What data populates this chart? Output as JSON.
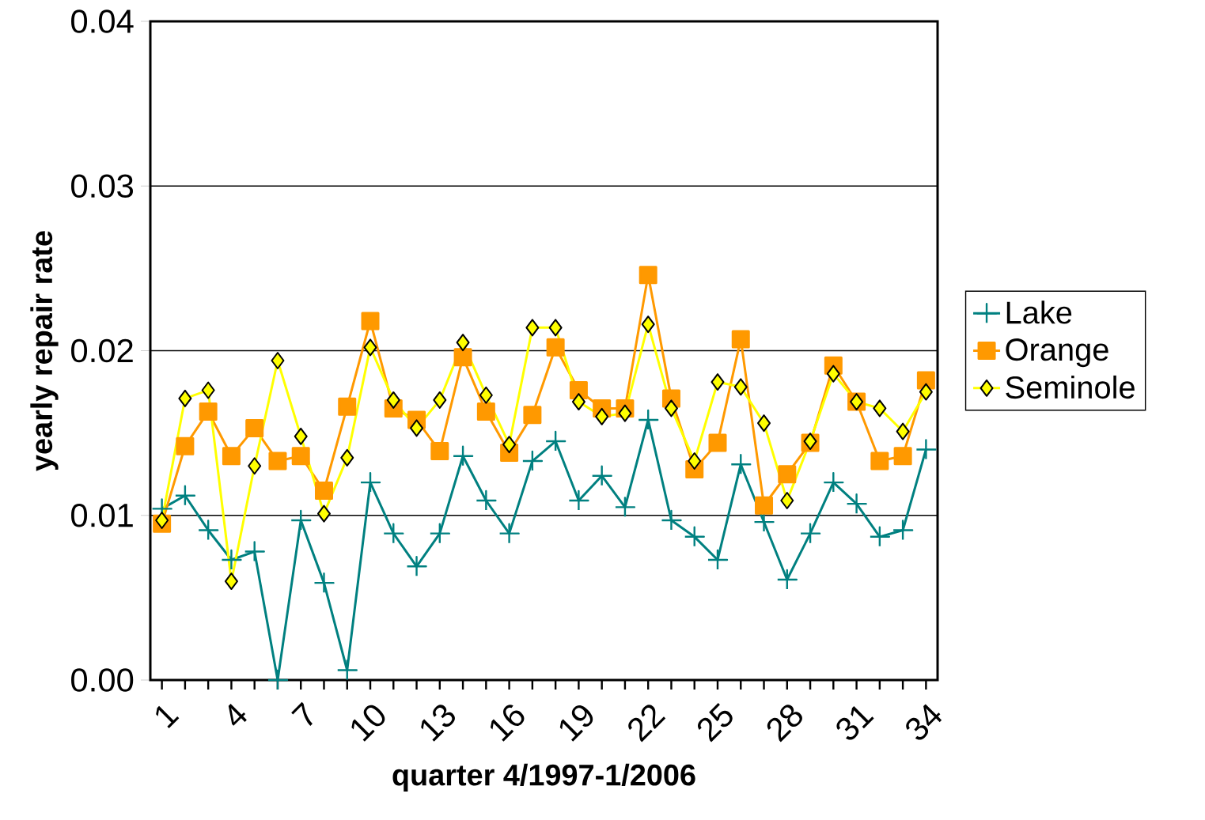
{
  "chart_data": {
    "type": "line",
    "xlabel": "quarter 4/1997-1/2006",
    "ylabel": "yearly repair rate",
    "categories": [
      "1",
      null,
      null,
      "4",
      null,
      null,
      "7",
      null,
      null,
      "10",
      null,
      null,
      "13",
      null,
      null,
      "16",
      null,
      null,
      "19",
      null,
      null,
      "22",
      null,
      null,
      "25",
      null,
      null,
      "28",
      null,
      null,
      "31",
      null,
      null,
      "34"
    ],
    "ylim": [
      0,
      0.04
    ],
    "yticks": [
      {
        "value": 0,
        "label": "0.00"
      },
      {
        "value": 0.01,
        "label": "0.01"
      },
      {
        "value": 0.02,
        "label": "0.02"
      },
      {
        "value": 0.03,
        "label": "0.03"
      },
      {
        "value": 0.04,
        "label": "0.04"
      }
    ],
    "grid": "y",
    "legend": "right",
    "series": [
      {
        "name": "Lake",
        "color": "#008080",
        "marker": "cross",
        "values": [
          0.0104,
          0.0112,
          0.0091,
          0.0073,
          0.0078,
          0.0,
          0.0097,
          0.0059,
          0.0006,
          0.012,
          0.0089,
          0.0069,
          0.0089,
          0.0136,
          0.0109,
          0.0089,
          0.0133,
          0.0145,
          0.0109,
          0.0124,
          0.0105,
          0.0158,
          0.0097,
          0.0087,
          0.0073,
          0.0131,
          0.0096,
          0.0061,
          0.0089,
          0.012,
          0.0107,
          0.0087,
          0.0091,
          0.014
        ]
      },
      {
        "name": "Orange",
        "color": "#ff9900",
        "marker": "square",
        "values": [
          0.0095,
          0.0142,
          0.0163,
          0.0136,
          0.0153,
          0.0133,
          0.0136,
          0.0115,
          0.0166,
          0.0218,
          0.0165,
          0.0158,
          0.0139,
          0.0196,
          0.0163,
          0.0138,
          0.0161,
          0.0202,
          0.0176,
          0.0165,
          0.0165,
          0.0246,
          0.0171,
          0.0128,
          0.0144,
          0.0207,
          0.0106,
          0.0125,
          0.0144,
          0.0191,
          0.0169,
          0.0133,
          0.0136,
          0.0182
        ]
      },
      {
        "name": "Seminole",
        "color": "#ffff00",
        "marker": "diamond",
        "values": [
          0.0097,
          0.0171,
          0.0176,
          0.006,
          0.013,
          0.0194,
          0.0148,
          0.0101,
          0.0135,
          0.0202,
          0.017,
          0.0153,
          0.017,
          0.0205,
          0.0173,
          0.0143,
          0.0214,
          0.0214,
          0.0169,
          0.016,
          0.0162,
          0.0216,
          0.0165,
          0.0133,
          0.0181,
          0.0178,
          0.0156,
          0.0109,
          0.0145,
          0.0186,
          0.0169,
          0.0165,
          0.0151,
          0.0175
        ]
      }
    ]
  }
}
